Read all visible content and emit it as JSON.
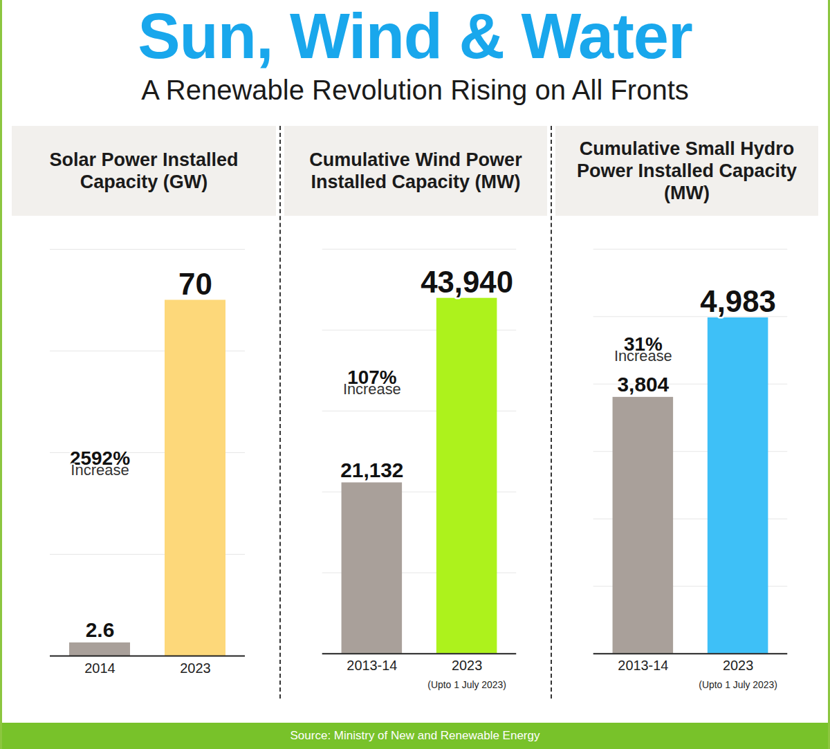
{
  "title": "Sun, Wind & Water",
  "subtitle": "A Renewable Revolution Rising on All Fronts",
  "source": "Source: Ministry of New and Renewable Energy",
  "chart_data": [
    {
      "type": "bar",
      "title": "Solar Power Installed Capacity (GW)",
      "categories": [
        "2014",
        "2023"
      ],
      "values": [
        2.6,
        70
      ],
      "colors": [
        "#a9a09a",
        "#fdd87a"
      ],
      "ylim": [
        0,
        80
      ],
      "yticks": [
        0,
        20,
        40,
        60,
        80
      ],
      "grid": true,
      "tick_labels": false,
      "data_labels": true,
      "annotation": [
        "2592%",
        "Increase"
      ]
    },
    {
      "type": "bar",
      "title": "Cumulative Wind Power Installed Capacity (MW)",
      "categories": [
        "2013-14",
        "2023"
      ],
      "category_notes": [
        null,
        "(Upto 1 July 2023)"
      ],
      "values": [
        21132,
        43940
      ],
      "value_labels": [
        "21,132",
        "43,940"
      ],
      "colors": [
        "#a9a09a",
        "#adf21c"
      ],
      "ylim": [
        0,
        50000
      ],
      "yticks": [
        0,
        10000,
        20000,
        30000,
        40000,
        50000
      ],
      "grid": true,
      "tick_labels": false,
      "data_labels": true,
      "annotation": [
        "107%",
        "Increase"
      ]
    },
    {
      "type": "bar",
      "title": "Cumulative Small Hydro Power Installed Capacity (MW)",
      "categories": [
        "2013-14",
        "2023"
      ],
      "category_notes": [
        null,
        "(Upto 1 July 2023)"
      ],
      "values": [
        3804,
        4983
      ],
      "value_labels": [
        "3,804",
        "4,983"
      ],
      "colors": [
        "#a9a09a",
        "#3ec0f7"
      ],
      "ylim": [
        0,
        6000
      ],
      "yticks": [
        0,
        1000,
        2000,
        3000,
        4000,
        5000,
        6000
      ],
      "grid": true,
      "tick_labels": false,
      "data_labels": true,
      "annotation": [
        "31%",
        "Increase"
      ]
    }
  ]
}
